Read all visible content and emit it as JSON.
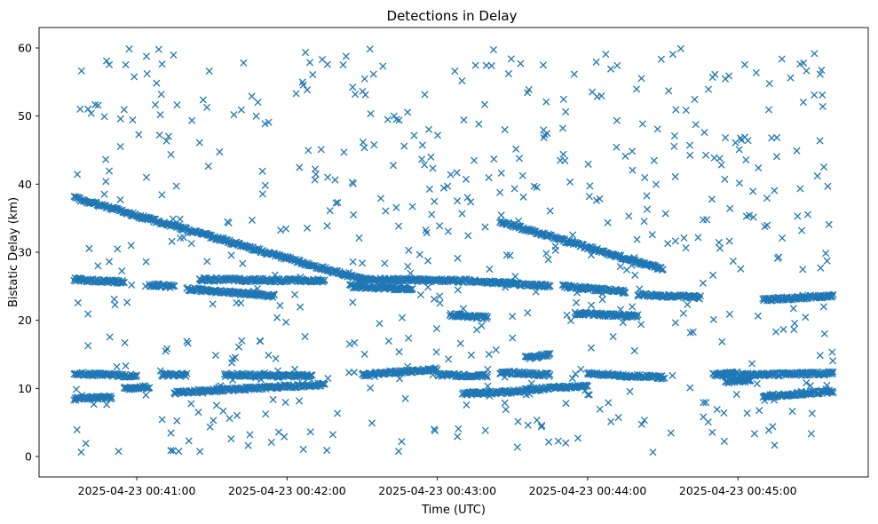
{
  "chart_data": {
    "type": "scatter",
    "title": "Detections in Delay",
    "xlabel": "Time (UTC)",
    "ylabel": "Bistatic Delay (km)",
    "marker": "x",
    "color": "#1f77b4",
    "grid": false,
    "legend": "none",
    "x_start": "2025-04-23 00:40:35",
    "x_end": "2025-04-23 00:45:38",
    "xlim": [
      "2025-04-23 00:40:21",
      "2025-04-23 00:45:52"
    ],
    "ylim": [
      -3,
      63
    ],
    "x_ticks": [
      "2025-04-23 00:41:00",
      "2025-04-23 00:42:00",
      "2025-04-23 00:43:00",
      "2025-04-23 00:44:00",
      "2025-04-23 00:45:00"
    ],
    "y_ticks": [
      "0",
      "10",
      "20",
      "30",
      "40",
      "50",
      "60"
    ],
    "tracks": [
      {
        "from": [
          "2025-04-23 00:40:35",
          38.0
        ],
        "to": [
          "2025-04-23 00:42:30",
          26.0
        ]
      },
      {
        "from": [
          "2025-04-23 00:42:30",
          26.0
        ],
        "to": [
          "2025-04-23 00:43:15",
          25.8
        ]
      },
      {
        "from": [
          "2025-04-23 00:43:15",
          25.8
        ],
        "to": [
          "2025-04-23 00:43:45",
          25.0
        ]
      },
      {
        "from": [
          "2025-04-23 00:40:35",
          26.0
        ],
        "to": [
          "2025-04-23 00:40:55",
          25.6
        ]
      },
      {
        "from": [
          "2025-04-23 00:41:05",
          25.2
        ],
        "to": [
          "2025-04-23 00:41:15",
          25.0
        ]
      },
      {
        "from": [
          "2025-04-23 00:41:20",
          24.6
        ],
        "to": [
          "2025-04-23 00:41:55",
          23.6
        ]
      },
      {
        "from": [
          "2025-04-23 00:41:25",
          26.0
        ],
        "to": [
          "2025-04-23 00:42:15",
          25.8
        ]
      },
      {
        "from": [
          "2025-04-23 00:42:25",
          25.0
        ],
        "to": [
          "2025-04-23 00:42:50",
          24.6
        ]
      },
      {
        "from": [
          "2025-04-23 00:43:05",
          20.8
        ],
        "to": [
          "2025-04-23 00:43:20",
          20.4
        ]
      },
      {
        "from": [
          "2025-04-23 00:43:25",
          34.5
        ],
        "to": [
          "2025-04-23 00:44:30",
          27.5
        ]
      },
      {
        "from": [
          "2025-04-23 00:43:50",
          25.0
        ],
        "to": [
          "2025-04-23 00:44:15",
          24.2
        ]
      },
      {
        "from": [
          "2025-04-23 00:43:55",
          21.0
        ],
        "to": [
          "2025-04-23 00:44:20",
          20.6
        ]
      },
      {
        "from": [
          "2025-04-23 00:44:20",
          23.8
        ],
        "to": [
          "2025-04-23 00:44:45",
          23.4
        ]
      },
      {
        "from": [
          "2025-04-23 00:45:10",
          23.0
        ],
        "to": [
          "2025-04-23 00:45:38",
          23.6
        ]
      },
      {
        "from": [
          "2025-04-23 00:40:35",
          12.2
        ],
        "to": [
          "2025-04-23 00:41:00",
          11.8
        ]
      },
      {
        "from": [
          "2025-04-23 00:40:35",
          8.5
        ],
        "to": [
          "2025-04-23 00:40:50",
          8.7
        ]
      },
      {
        "from": [
          "2025-04-23 00:40:55",
          10.0
        ],
        "to": [
          "2025-04-23 00:41:05",
          10.2
        ]
      },
      {
        "from": [
          "2025-04-23 00:41:10",
          12.0
        ],
        "to": [
          "2025-04-23 00:41:20",
          12.0
        ]
      },
      {
        "from": [
          "2025-04-23 00:41:15",
          9.4
        ],
        "to": [
          "2025-04-23 00:41:45",
          10.0
        ]
      },
      {
        "from": [
          "2025-04-23 00:41:35",
          12.0
        ],
        "to": [
          "2025-04-23 00:42:10",
          11.8
        ]
      },
      {
        "from": [
          "2025-04-23 00:41:45",
          10.0
        ],
        "to": [
          "2025-04-23 00:42:15",
          10.6
        ]
      },
      {
        "from": [
          "2025-04-23 00:42:30",
          12.0
        ],
        "to": [
          "2025-04-23 00:43:00",
          12.8
        ]
      },
      {
        "from": [
          "2025-04-23 00:43:00",
          12.0
        ],
        "to": [
          "2025-04-23 00:43:20",
          11.8
        ]
      },
      {
        "from": [
          "2025-04-23 00:43:10",
          9.2
        ],
        "to": [
          "2025-04-23 00:43:35",
          9.6
        ]
      },
      {
        "from": [
          "2025-04-23 00:43:25",
          12.4
        ],
        "to": [
          "2025-04-23 00:43:45",
          12.0
        ]
      },
      {
        "from": [
          "2025-04-23 00:43:35",
          14.5
        ],
        "to": [
          "2025-04-23 00:43:45",
          15.0
        ]
      },
      {
        "from": [
          "2025-04-23 00:43:35",
          9.8
        ],
        "to": [
          "2025-04-23 00:44:00",
          10.4
        ]
      },
      {
        "from": [
          "2025-04-23 00:44:00",
          12.2
        ],
        "to": [
          "2025-04-23 00:44:30",
          11.6
        ]
      },
      {
        "from": [
          "2025-04-23 00:44:50",
          12.0
        ],
        "to": [
          "2025-04-23 00:45:00",
          12.2
        ]
      },
      {
        "from": [
          "2025-04-23 00:45:00",
          12.0
        ],
        "to": [
          "2025-04-23 00:45:38",
          12.2
        ]
      },
      {
        "from": [
          "2025-04-23 00:45:10",
          8.8
        ],
        "to": [
          "2025-04-23 00:45:38",
          9.6
        ]
      },
      {
        "from": [
          "2025-04-23 00:44:55",
          11.0
        ],
        "to": [
          "2025-04-23 00:45:05",
          11.2
        ]
      }
    ],
    "scattered_point_count": 620
  }
}
